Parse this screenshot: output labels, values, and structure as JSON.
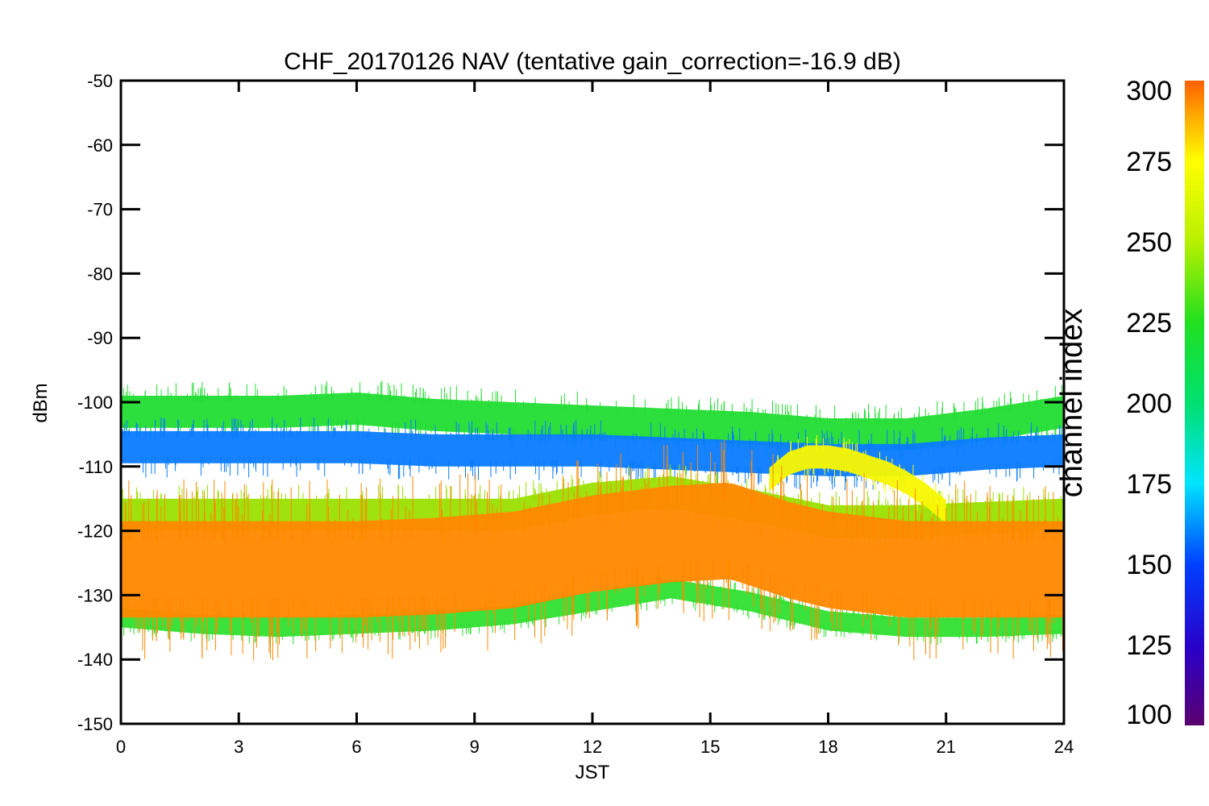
{
  "chart_data": {
    "type": "scatter",
    "title": "CHF_20170126 NAV (tentative gain_correction=-16.9 dB)",
    "xlabel": "JST",
    "ylabel": "dBm",
    "xlim": [
      0,
      24
    ],
    "ylim": [
      -150,
      -50
    ],
    "x_ticks": [
      "0",
      "3",
      "6",
      "9",
      "12",
      "15",
      "18",
      "21",
      "24"
    ],
    "y_ticks": [
      "-50",
      "-60",
      "-70",
      "-80",
      "-90",
      "-100",
      "-110",
      "-120",
      "-130",
      "-140",
      "-150"
    ],
    "colorbar": {
      "label": "channel index",
      "range": [
        100,
        300
      ],
      "ticks": [
        "300",
        "275",
        "250",
        "225",
        "200",
        "175",
        "150",
        "125",
        "100"
      ],
      "colormap": "rainbow"
    },
    "bands": [
      {
        "channel": 215,
        "color": "#22dd33",
        "x": [
          0,
          2,
          4,
          6,
          8,
          10,
          12,
          14,
          16,
          18,
          20,
          22,
          24
        ],
        "center": [
          -101.5,
          -101.5,
          -101.5,
          -101,
          -102,
          -102.5,
          -103,
          -103.5,
          -104,
          -105,
          -105,
          -103.5,
          -101.5
        ],
        "spread": [
          2.5,
          2.5,
          2.5,
          2.5,
          2.5,
          2.5,
          2.5,
          2.5,
          2.5,
          2.5,
          2.5,
          2.5,
          2.5
        ]
      },
      {
        "channel": 155,
        "color": "#0a7bff",
        "x": [
          0,
          2,
          4,
          6,
          8,
          10,
          12,
          14,
          16,
          18,
          20,
          22,
          24
        ],
        "center": [
          -107,
          -107,
          -107,
          -107,
          -107.5,
          -107.5,
          -107.5,
          -108,
          -108.5,
          -109,
          -109,
          -108,
          -107.5
        ],
        "spread": [
          2.5,
          2.5,
          2.5,
          2.5,
          2.5,
          2.5,
          2.5,
          2.5,
          2.5,
          2.5,
          2.5,
          2.5,
          2.5
        ]
      },
      {
        "channel": 240,
        "color": "#9be000",
        "x": [
          0,
          2,
          4,
          6,
          8,
          10,
          12,
          14,
          16,
          18,
          20,
          22,
          24
        ],
        "center": [
          -117.5,
          -117.5,
          -117.5,
          -117.5,
          -117.5,
          -117.5,
          -115,
          -114,
          -116,
          -118.5,
          -118.5,
          -118,
          -117.5
        ],
        "spread": [
          2.5,
          2.5,
          2.5,
          2.5,
          2.5,
          2.5,
          2.5,
          2.5,
          2.5,
          2.5,
          2.5,
          2.5,
          2.5
        ]
      },
      {
        "channel": 275,
        "color": "#f8f800",
        "x": [
          16.5,
          17,
          17.5,
          18,
          18.5,
          19,
          19.5,
          20,
          20.5,
          21
        ],
        "center": [
          -112,
          -109.5,
          -108.5,
          -108.5,
          -109,
          -110,
          -111,
          -112.5,
          -114.5,
          -117
        ],
        "spread": [
          1.8,
          1.8,
          1.8,
          1.8,
          1.8,
          1.8,
          1.8,
          1.8,
          1.8,
          1.8
        ]
      },
      {
        "channel": 230,
        "color": "#30e030",
        "x": [
          0,
          2,
          4,
          6,
          8,
          10,
          12,
          14,
          16,
          18,
          20,
          22,
          24
        ],
        "center": [
          -133.5,
          -134.5,
          -135,
          -134.5,
          -134,
          -133,
          -131,
          -129,
          -131,
          -134,
          -135,
          -135,
          -134.5
        ],
        "spread": [
          1.5,
          1.5,
          1.5,
          1.5,
          1.5,
          1.5,
          1.5,
          1.5,
          1.5,
          1.5,
          1.5,
          1.5,
          1.5
        ]
      },
      {
        "channel": 290,
        "color": "#ff8800",
        "x": [
          0,
          2,
          4,
          6,
          8,
          10,
          12,
          14,
          15.5,
          17,
          18,
          20,
          22,
          24
        ],
        "center": [
          -126,
          -126,
          -126,
          -126,
          -125.5,
          -124.5,
          -122,
          -120.5,
          -120,
          -123,
          -124.5,
          -126,
          -126,
          -126
        ],
        "spread": [
          7.5,
          7.5,
          7.5,
          7.5,
          7.5,
          7.5,
          7.5,
          7.5,
          7.5,
          7.5,
          7.5,
          7.5,
          7.5,
          7.5
        ]
      }
    ]
  }
}
